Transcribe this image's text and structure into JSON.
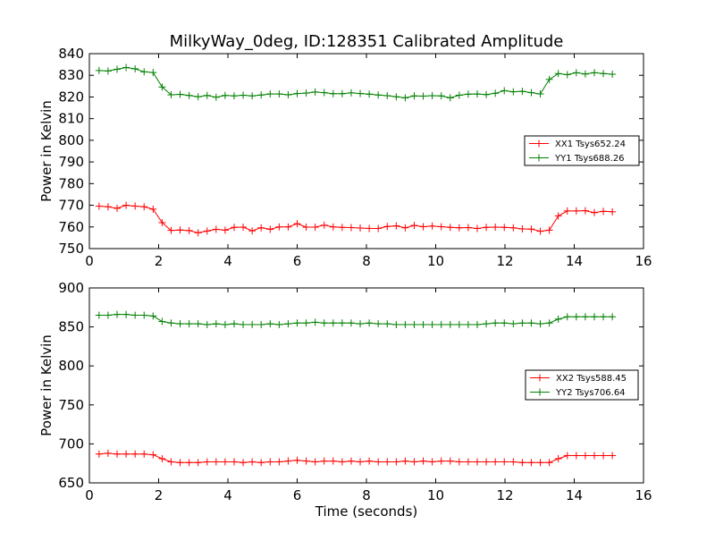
{
  "title": "MilkyWay_0deg, ID:128351 Calibrated Amplitude",
  "chart_data": [
    {
      "type": "line",
      "title": "MilkyWay_0deg, ID:128351 Calibrated Amplitude",
      "xlabel": "",
      "ylabel": "Power in Kelvin",
      "xlim": [
        0,
        16
      ],
      "ylim": [
        750,
        840
      ],
      "xticks": [
        0,
        2,
        4,
        6,
        8,
        10,
        12,
        14,
        16
      ],
      "yticks": [
        750,
        760,
        770,
        780,
        790,
        800,
        810,
        820,
        830,
        840
      ],
      "grid": false,
      "legend_position": "center-right",
      "x": [
        0.28,
        0.54,
        0.8,
        1.06,
        1.32,
        1.58,
        1.84,
        2.1,
        2.36,
        2.62,
        2.88,
        3.14,
        3.4,
        3.66,
        3.92,
        4.18,
        4.44,
        4.7,
        4.96,
        5.22,
        5.48,
        5.74,
        6.0,
        6.26,
        6.52,
        6.78,
        7.04,
        7.3,
        7.56,
        7.82,
        8.08,
        8.34,
        8.6,
        8.86,
        9.12,
        9.38,
        9.64,
        9.9,
        10.16,
        10.42,
        10.68,
        10.94,
        11.2,
        11.46,
        11.72,
        11.98,
        12.24,
        12.5,
        12.76,
        13.02,
        13.28,
        13.54,
        13.8,
        14.06,
        14.32,
        14.58,
        14.84,
        15.1
      ],
      "series": [
        {
          "name": "XX1 Tsys652.24",
          "color": "#ff0000",
          "values": [
            769.6,
            769.3,
            768.6,
            770.0,
            769.6,
            769.3,
            768.2,
            762.0,
            758.4,
            758.6,
            758.3,
            757.3,
            758.1,
            758.9,
            758.5,
            759.8,
            759.9,
            758.2,
            759.6,
            758.9,
            760.0,
            760.0,
            761.5,
            759.9,
            759.9,
            760.8,
            760.0,
            759.8,
            759.7,
            759.5,
            759.3,
            759.3,
            760.2,
            760.5,
            759.6,
            760.7,
            760.1,
            760.4,
            760.1,
            759.8,
            759.6,
            759.7,
            759.3,
            759.8,
            759.9,
            759.8,
            759.6,
            759.1,
            759.0,
            758.0,
            758.5,
            765.1,
            767.4,
            767.4,
            767.5,
            766.6,
            767.2,
            767.0
          ]
        },
        {
          "name": "YY1 Tsys688.26",
          "color": "#008000",
          "values": [
            832.2,
            832.0,
            832.8,
            833.6,
            833.0,
            831.6,
            831.3,
            824.6,
            821.0,
            821.2,
            820.7,
            820.1,
            820.7,
            819.9,
            820.7,
            820.5,
            820.8,
            820.5,
            820.9,
            821.4,
            821.4,
            821.0,
            821.6,
            821.8,
            822.3,
            822.0,
            821.5,
            821.5,
            821.9,
            821.6,
            821.3,
            820.9,
            820.6,
            820.1,
            819.6,
            820.5,
            820.4,
            820.6,
            820.5,
            819.6,
            820.8,
            821.3,
            821.4,
            821.1,
            821.7,
            822.9,
            822.4,
            822.6,
            822.0,
            821.4,
            828.1,
            830.8,
            830.3,
            831.2,
            830.6,
            831.2,
            830.8,
            830.5
          ]
        }
      ]
    },
    {
      "type": "line",
      "title": "",
      "xlabel": "Time (seconds)",
      "ylabel": "Power in Kelvin",
      "xlim": [
        0,
        16
      ],
      "ylim": [
        650,
        900
      ],
      "xticks": [
        0,
        2,
        4,
        6,
        8,
        10,
        12,
        14,
        16
      ],
      "yticks": [
        650,
        700,
        750,
        800,
        850,
        900
      ],
      "grid": false,
      "legend_position": "center-right",
      "x": [
        0.28,
        0.54,
        0.8,
        1.06,
        1.32,
        1.58,
        1.84,
        2.1,
        2.36,
        2.62,
        2.88,
        3.14,
        3.4,
        3.66,
        3.92,
        4.18,
        4.44,
        4.7,
        4.96,
        5.22,
        5.48,
        5.74,
        6.0,
        6.26,
        6.52,
        6.78,
        7.04,
        7.3,
        7.56,
        7.82,
        8.08,
        8.34,
        8.6,
        8.86,
        9.12,
        9.38,
        9.64,
        9.9,
        10.16,
        10.42,
        10.68,
        10.94,
        11.2,
        11.46,
        11.72,
        11.98,
        12.24,
        12.5,
        12.76,
        13.02,
        13.28,
        13.54,
        13.8,
        14.06,
        14.32,
        14.58,
        14.84,
        15.1
      ],
      "series": [
        {
          "name": "XX2 Tsys588.45",
          "color": "#ff0000",
          "values": [
            687,
            688,
            687,
            687,
            687,
            687,
            686,
            681,
            677,
            676,
            676,
            676,
            677,
            677,
            677,
            677,
            676,
            677,
            676,
            677,
            677,
            678,
            679,
            678,
            677,
            678,
            678,
            677,
            678,
            677,
            678,
            677,
            677,
            677,
            678,
            677,
            678,
            677,
            678,
            678,
            677,
            677,
            677,
            677,
            677,
            677,
            677,
            676,
            676,
            676,
            676,
            681,
            685,
            685,
            685,
            685,
            685,
            685
          ]
        },
        {
          "name": "YY2 Tsys706.64",
          "color": "#008000",
          "values": [
            865,
            865,
            866,
            866,
            865,
            865,
            864,
            857,
            855,
            854,
            854,
            854,
            853,
            854,
            853,
            854,
            853,
            853,
            853,
            854,
            853,
            854,
            855,
            855,
            856,
            855,
            855,
            855,
            855,
            854,
            855,
            854,
            854,
            853,
            853,
            853,
            853,
            853,
            853,
            853,
            853,
            853,
            853,
            854,
            855,
            855,
            854,
            855,
            855,
            854,
            855,
            860,
            863,
            863,
            863,
            863,
            863,
            863
          ]
        }
      ]
    }
  ]
}
